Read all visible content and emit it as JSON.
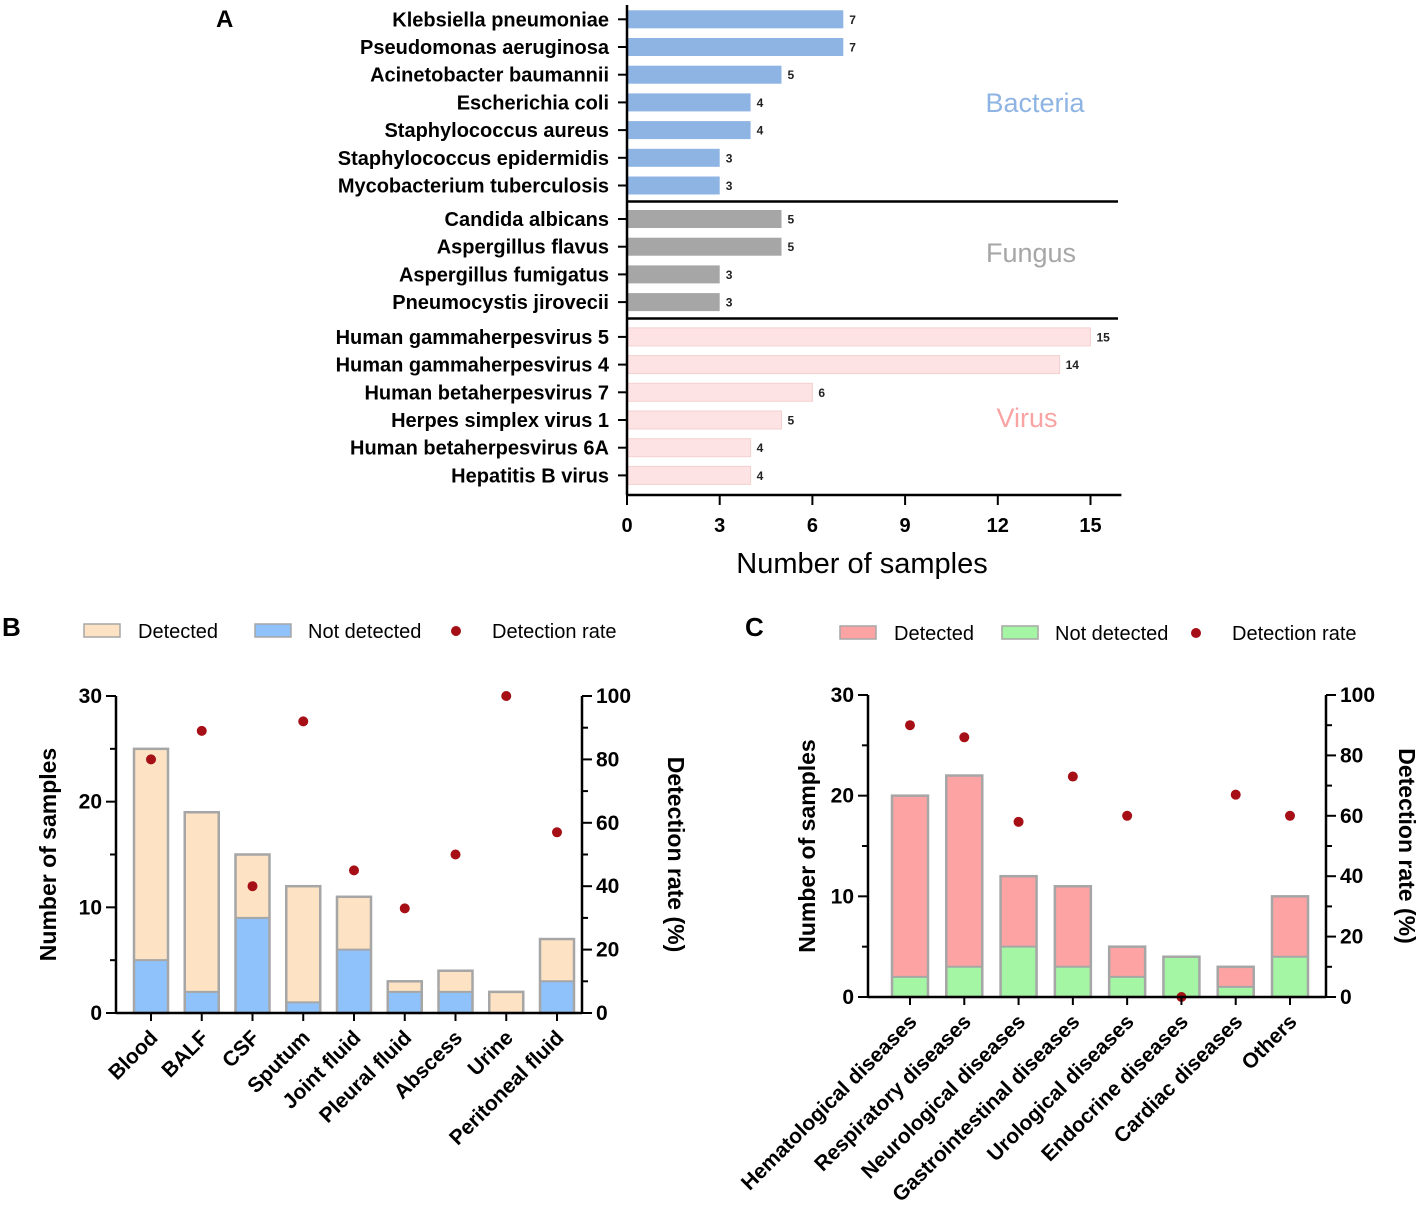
{
  "chart_data": [
    {
      "panel": "A",
      "type": "bar",
      "orientation": "horizontal",
      "xlabel": "Number of samples",
      "xlim": [
        0,
        16
      ],
      "xticks": [
        0,
        3,
        6,
        9,
        12,
        15
      ],
      "groups": [
        {
          "name": "Bacteria",
          "color": "#8eb4e3",
          "categories": [
            "Klebsiella pneumoniae",
            "Pseudomonas aeruginosa",
            "Acinetobacter baumannii",
            "Escherichia coli",
            "Staphylococcus aureus",
            "Staphylococcus epidermidis",
            "Mycobacterium tuberculosis"
          ],
          "values": [
            7,
            7,
            5,
            4,
            4,
            3,
            3
          ]
        },
        {
          "name": "Fungus",
          "color": "#a6a6a6",
          "categories": [
            "Candida albicans",
            "Aspergillus flavus",
            "Aspergillus fumigatus",
            "Pneumocystis jirovecii"
          ],
          "values": [
            5,
            5,
            3,
            3
          ]
        },
        {
          "name": "Virus",
          "color": "#fde3e3",
          "categories": [
            "Human gammaherpesvirus 5",
            "Human gammaherpesvirus 4",
            "Human betaherpesvirus 7",
            "Herpes simplex virus 1",
            "Human betaherpesvirus 6A",
            "Hepatitis B virus"
          ],
          "values": [
            15,
            14,
            6,
            5,
            4,
            4
          ]
        }
      ]
    },
    {
      "panel": "B",
      "type": "bar",
      "stacked": true,
      "categories": [
        "Blood",
        "BALF",
        "CSF",
        "Sputum",
        "Joint fluid",
        "Pleural fluid",
        "Abscess",
        "Urine",
        "Peritoneal fluid"
      ],
      "series": [
        {
          "name": "Not detected",
          "color": "#8fc2fa",
          "values": [
            5,
            2,
            9,
            1,
            6,
            2,
            2,
            0,
            3
          ]
        },
        {
          "name": "Detected",
          "color": "#fde3c4",
          "values": [
            20,
            17,
            6,
            11,
            5,
            1,
            2,
            2,
            4
          ]
        }
      ],
      "rate": {
        "name": "Detection rate",
        "color": "#a50f15",
        "values": [
          80,
          89,
          40,
          92,
          45,
          33,
          50,
          100,
          57
        ]
      },
      "ylabel": "Number of samples",
      "ylim": [
        0,
        30
      ],
      "yticks": [
        0,
        10,
        20,
        30
      ],
      "y2label": "Detection rate (%)",
      "y2lim": [
        0,
        100
      ],
      "y2ticks": [
        0,
        20,
        40,
        60,
        80,
        100
      ]
    },
    {
      "panel": "C",
      "type": "bar",
      "stacked": true,
      "categories": [
        "Hematological diseases",
        "Respiratory diseases",
        "Neurological diseases",
        "Gastrointestinal diseases",
        "Urological diseases",
        "Endocrine diseases",
        "Cardiac diseases",
        "Others"
      ],
      "series": [
        {
          "name": "Not detected",
          "color": "#a4f5a4",
          "values": [
            2,
            3,
            5,
            3,
            2,
            4,
            1,
            4
          ]
        },
        {
          "name": "Detected",
          "color": "#fda3a3",
          "values": [
            18,
            19,
            7,
            8,
            3,
            0,
            2,
            6
          ]
        }
      ],
      "rate": {
        "name": "Detection rate",
        "color": "#a50f15",
        "values": [
          90,
          86,
          58,
          73,
          60,
          0,
          67,
          60
        ]
      },
      "ylabel": "Number of samples",
      "ylim": [
        0,
        30
      ],
      "yticks": [
        0,
        10,
        20,
        30
      ],
      "y2label": "Detection rate (%)",
      "y2lim": [
        0,
        100
      ],
      "y2ticks": [
        0,
        20,
        40,
        60,
        80,
        100
      ]
    }
  ]
}
